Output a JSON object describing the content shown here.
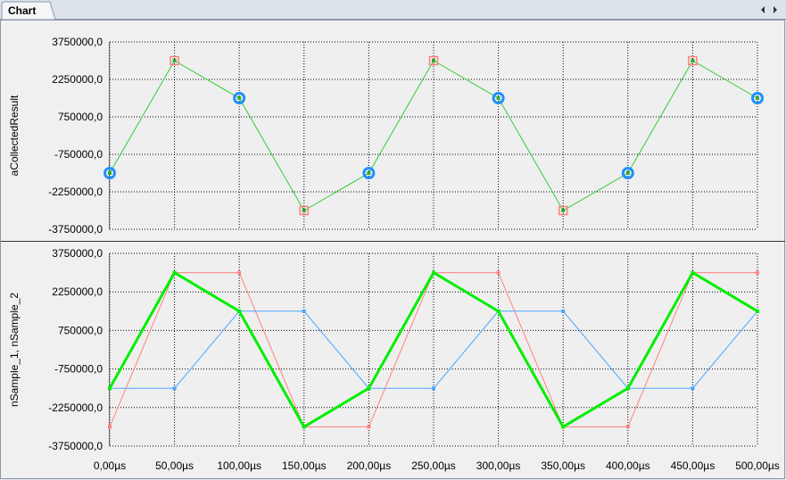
{
  "tab": "Chart",
  "chart_data": [
    {
      "type": "line",
      "y_label": "aCollectedResult",
      "x": [
        0,
        50,
        100,
        150,
        200,
        250,
        300,
        350,
        400,
        450,
        500
      ],
      "xlim": [
        0,
        500
      ],
      "xticks": [
        0,
        50,
        100,
        150,
        200,
        250,
        300,
        350,
        400,
        450,
        500
      ],
      "ylim": [
        -3750000,
        3750000
      ],
      "yticks": [
        {
          "value": 3750000,
          "label": "3750000,0"
        },
        {
          "value": 2250000,
          "label": "2250000,0"
        },
        {
          "value": 750000,
          "label": "750000,0"
        },
        {
          "value": -750000,
          "label": "-750000,0"
        },
        {
          "value": -2250000,
          "label": "-2250000,0"
        },
        {
          "value": -3750000,
          "label": "-3750000,0"
        }
      ],
      "grid": true,
      "series": [
        {
          "color": "#33cc33",
          "width": 1,
          "markers": [
            "circle",
            "square",
            "circle",
            "square",
            "circle",
            "square",
            "circle",
            "square",
            "circle",
            "square",
            "circle"
          ],
          "values": [
            -1500000,
            3000000,
            1500000,
            -3000000,
            -1500000,
            3000000,
            1500000,
            -3000000,
            -1500000,
            3000000,
            1500000
          ]
        }
      ]
    },
    {
      "type": "line",
      "y_label": "nSample_1, nSample_2",
      "x": [
        0,
        50,
        100,
        150,
        200,
        250,
        300,
        350,
        400,
        450,
        500
      ],
      "xlim": [
        0,
        500
      ],
      "xticks": [
        {
          "value": 0,
          "label": "0,00µs"
        },
        {
          "value": 50,
          "label": "50,00µs"
        },
        {
          "value": 100,
          "label": "100,00µs"
        },
        {
          "value": 150,
          "label": "150,00µs"
        },
        {
          "value": 200,
          "label": "200,00µs"
        },
        {
          "value": 250,
          "label": "250,00µs"
        },
        {
          "value": 300,
          "label": "300,00µs"
        },
        {
          "value": 350,
          "label": "350,00µs"
        },
        {
          "value": 400,
          "label": "400,00µs"
        },
        {
          "value": 450,
          "label": "450,00µs"
        },
        {
          "value": 500,
          "label": "500,00µs"
        }
      ],
      "ylim": [
        -3750000,
        3750000
      ],
      "yticks": [
        {
          "value": 3750000,
          "label": "3750000,0"
        },
        {
          "value": 2250000,
          "label": "2250000,0"
        },
        {
          "value": 750000,
          "label": "750000,0"
        },
        {
          "value": -750000,
          "label": "-750000,0"
        },
        {
          "value": -2250000,
          "label": "-2250000,0"
        },
        {
          "value": -3750000,
          "label": "-3750000,0"
        }
      ],
      "grid": true,
      "series": [
        {
          "color": "#ff8080",
          "width": 1,
          "values": [
            -3000000,
            3000000,
            3000000,
            -3000000,
            -3000000,
            3000000,
            3000000,
            -3000000,
            -3000000,
            3000000,
            3000000
          ]
        },
        {
          "color": "#4da6ff",
          "width": 1,
          "values": [
            -1500000,
            -1500000,
            1500000,
            1500000,
            -1500000,
            -1500000,
            1500000,
            1500000,
            -1500000,
            -1500000,
            1500000
          ]
        },
        {
          "color": "#00ee00",
          "width": 3,
          "values": [
            -1500000,
            3000000,
            1500000,
            -3000000,
            -1500000,
            3000000,
            1500000,
            -3000000,
            -1500000,
            3000000,
            1500000
          ]
        }
      ]
    }
  ]
}
